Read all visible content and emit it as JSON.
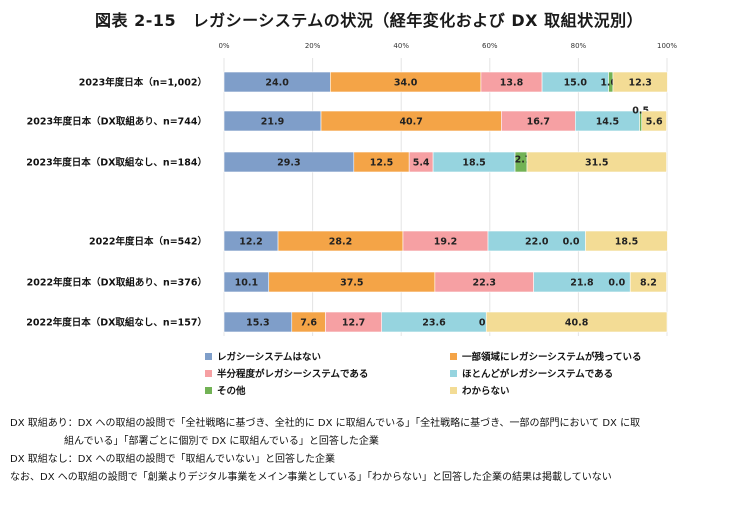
{
  "title": "図表 2-15　レガシーシステムの状況（経年変化および DX 取組状況別）",
  "colors": [
    "#7f9ec9",
    "#f4a447",
    "#f6a0a3",
    "#96d4df",
    "#72b255",
    "#f3dc95"
  ],
  "chart_data": {
    "type": "bar",
    "orientation": "horizontal",
    "stacked": true,
    "percent": true,
    "xlim": [
      0,
      100
    ],
    "x_ticks": [
      "0%",
      "20%",
      "40%",
      "60%",
      "80%",
      "100%"
    ],
    "categories": [
      "2023年度日本（n=1,002）",
      "2023年度日本（DX取組あり、n=744）",
      "2023年度日本（DX取組なし、n=184）",
      "",
      "2022年度日本（n=542）",
      "2022年度日本（DX取組あり、n=376）",
      "2022年度日本（DX取組なし、n=157）"
    ],
    "series": [
      {
        "name": "レガシーシステムはない",
        "values": [
          24.0,
          21.9,
          29.3,
          null,
          12.2,
          10.1,
          15.3
        ],
        "labels": [
          "24.0",
          "21.9",
          "29.3",
          null,
          "12.2",
          "10.1",
          "15.3"
        ]
      },
      {
        "name": "一部領域にレガシーシステムが残っている",
        "values": [
          34.0,
          40.7,
          12.5,
          null,
          28.2,
          37.5,
          7.6
        ],
        "labels": [
          "34.0",
          "40.7",
          "12.5",
          null,
          "28.2",
          "37.5",
          "7.6"
        ]
      },
      {
        "name": "半分程度がレガシーシステムである",
        "values": [
          13.8,
          16.7,
          5.4,
          null,
          19.2,
          22.3,
          12.7
        ],
        "labels": [
          "13.8",
          "16.7",
          "5.4",
          null,
          "19.2",
          "22.3",
          "12.7"
        ]
      },
      {
        "name": "ほとんどがレガシーシステムである",
        "values": [
          15.0,
          14.5,
          18.5,
          null,
          22.0,
          21.8,
          23.6
        ],
        "labels": [
          "15.0",
          "14.5",
          "18.5",
          null,
          "22.0",
          "21.8",
          "23.6"
        ]
      },
      {
        "name": "その他",
        "values": [
          1.0,
          0.5,
          2.7,
          null,
          0.0,
          0.0,
          0.0
        ],
        "labels": [
          "1.0",
          "0.5",
          "2.7",
          null,
          "0.0",
          "0.0",
          "0.0"
        ]
      },
      {
        "name": "わからない",
        "values": [
          12.3,
          5.6,
          31.5,
          null,
          18.5,
          8.2,
          40.8
        ],
        "labels": [
          "12.3",
          "5.6",
          "31.5",
          null,
          "18.5",
          "8.2",
          "40.8"
        ]
      }
    ]
  },
  "notes": [
    "DX 取組あり：DX への取組の設問で「全社戦略に基づき、全社的に DX に取組んでいる」「全社戦略に基づき、一部の部門において DX に取",
    "組んでいる」「部署ごとに個別で DX に取組んでいる」と回答した企業",
    "DX 取組なし：DX への取組の設問で「取組んでいない」と回答した企業",
    "なお、DX への取組の設問で「創業よりデジタル事業をメイン事業としている」「わからない」と回答した企業の結果は掲載していない"
  ]
}
